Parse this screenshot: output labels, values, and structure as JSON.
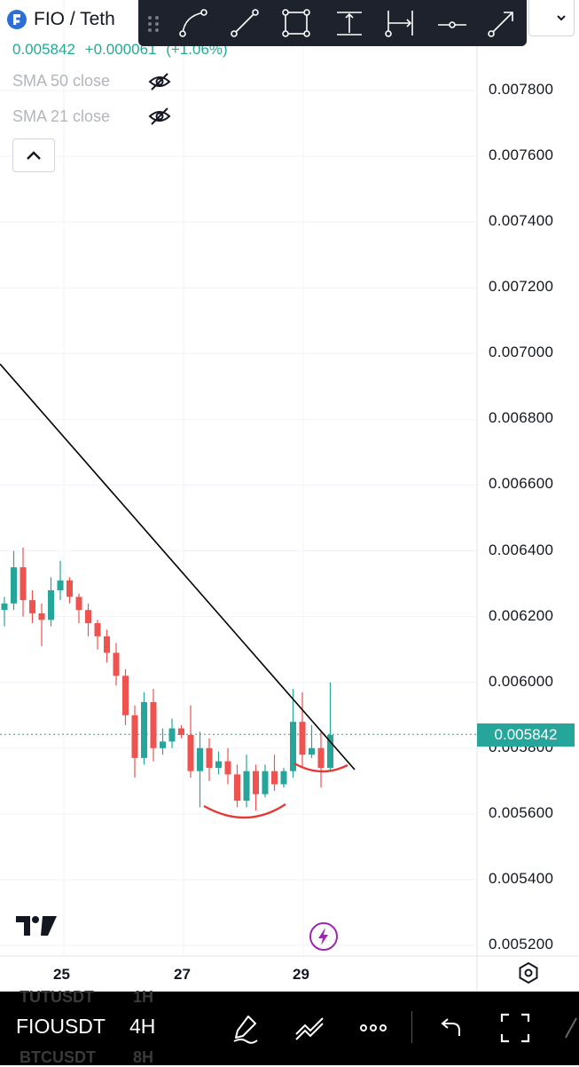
{
  "header": {
    "symbol_title": "FIO / Teth",
    "last_price": "0.005842",
    "change": "+0.000061",
    "change_pct": "(+1.06%)"
  },
  "indicators": [
    {
      "label": "SMA 50 close",
      "icon": "eye-crossed-icon"
    },
    {
      "label": "SMA 21 close",
      "icon": "eye-crossed-icon"
    }
  ],
  "drawing_toolbar": {
    "icons": [
      "drag-handle-icon",
      "curve-tool-icon",
      "trend-line-icon",
      "rectangle-tool-icon",
      "vertical-measure-icon",
      "horizontal-measure-icon",
      "horizontal-ray-icon",
      "arrow-tool-icon"
    ]
  },
  "current_price_tag": "0.005842",
  "chart_data": {
    "type": "candlestick",
    "x_tick_labels": [
      "25",
      "27",
      "29"
    ],
    "y_tick_labels": [
      "0.007800",
      "0.007600",
      "0.007400",
      "0.007200",
      "0.007000",
      "0.006800",
      "0.006600",
      "0.006400",
      "0.006200",
      "0.006000",
      "0.005800",
      "0.005600",
      "0.005400",
      "0.005200"
    ],
    "ylim": [
      0.00515,
      0.0079
    ],
    "grid": true,
    "colors": {
      "up": "#26a69a",
      "down": "#ef5350",
      "trendline": "#000000",
      "arc": "#e53935",
      "price_line": "#26a69a"
    },
    "candles": [
      {
        "o": 0.00622,
        "h": 0.00626,
        "l": 0.00617,
        "c": 0.00624
      },
      {
        "o": 0.00624,
        "h": 0.0064,
        "l": 0.00622,
        "c": 0.00635
      },
      {
        "o": 0.00635,
        "h": 0.00641,
        "l": 0.0062,
        "c": 0.00625
      },
      {
        "o": 0.00625,
        "h": 0.00628,
        "l": 0.00618,
        "c": 0.00621
      },
      {
        "o": 0.00621,
        "h": 0.00624,
        "l": 0.00611,
        "c": 0.00619
      },
      {
        "o": 0.00619,
        "h": 0.00632,
        "l": 0.00617,
        "c": 0.00628
      },
      {
        "o": 0.00628,
        "h": 0.00637,
        "l": 0.00625,
        "c": 0.00631
      },
      {
        "o": 0.00631,
        "h": 0.00632,
        "l": 0.00624,
        "c": 0.00626
      },
      {
        "o": 0.00626,
        "h": 0.00627,
        "l": 0.00618,
        "c": 0.00622
      },
      {
        "o": 0.00622,
        "h": 0.00624,
        "l": 0.00614,
        "c": 0.00618
      },
      {
        "o": 0.00618,
        "h": 0.00619,
        "l": 0.0061,
        "c": 0.00614
      },
      {
        "o": 0.00614,
        "h": 0.00616,
        "l": 0.00606,
        "c": 0.00609
      },
      {
        "o": 0.00609,
        "h": 0.00612,
        "l": 0.00599,
        "c": 0.00602
      },
      {
        "o": 0.00602,
        "h": 0.00604,
        "l": 0.00587,
        "c": 0.0059
      },
      {
        "o": 0.0059,
        "h": 0.00593,
        "l": 0.00571,
        "c": 0.00577
      },
      {
        "o": 0.00577,
        "h": 0.00597,
        "l": 0.00575,
        "c": 0.00594
      },
      {
        "o": 0.00594,
        "h": 0.00598,
        "l": 0.00576,
        "c": 0.0058
      },
      {
        "o": 0.0058,
        "h": 0.00586,
        "l": 0.00578,
        "c": 0.00582
      },
      {
        "o": 0.00582,
        "h": 0.00589,
        "l": 0.0058,
        "c": 0.00586
      },
      {
        "o": 0.00586,
        "h": 0.00587,
        "l": 0.00583,
        "c": 0.00584
      },
      {
        "o": 0.00584,
        "h": 0.00593,
        "l": 0.00571,
        "c": 0.00573
      },
      {
        "o": 0.00573,
        "h": 0.00585,
        "l": 0.00562,
        "c": 0.0058
      },
      {
        "o": 0.0058,
        "h": 0.00583,
        "l": 0.0057,
        "c": 0.00574
      },
      {
        "o": 0.00574,
        "h": 0.00579,
        "l": 0.00572,
        "c": 0.00576
      },
      {
        "o": 0.00576,
        "h": 0.0058,
        "l": 0.00569,
        "c": 0.00572
      },
      {
        "o": 0.00572,
        "h": 0.00575,
        "l": 0.00562,
        "c": 0.00564
      },
      {
        "o": 0.00564,
        "h": 0.00578,
        "l": 0.00562,
        "c": 0.00573
      },
      {
        "o": 0.00573,
        "h": 0.00575,
        "l": 0.00561,
        "c": 0.00566
      },
      {
        "o": 0.00566,
        "h": 0.00575,
        "l": 0.00565,
        "c": 0.00573
      },
      {
        "o": 0.00573,
        "h": 0.00578,
        "l": 0.00567,
        "c": 0.00569
      },
      {
        "o": 0.00569,
        "h": 0.00574,
        "l": 0.00568,
        "c": 0.00573
      },
      {
        "o": 0.00573,
        "h": 0.00598,
        "l": 0.00571,
        "c": 0.00588
      },
      {
        "o": 0.00588,
        "h": 0.00597,
        "l": 0.00574,
        "c": 0.00578
      },
      {
        "o": 0.00578,
        "h": 0.00587,
        "l": 0.00577,
        "c": 0.0058
      },
      {
        "o": 0.0058,
        "h": 0.00585,
        "l": 0.00568,
        "c": 0.00574
      },
      {
        "o": 0.00574,
        "h": 0.006,
        "l": 0.00573,
        "c": 0.00584
      }
    ]
  },
  "bottom_bar": {
    "symbol": "FIOUSDT",
    "interval": "4H",
    "ghost_symbol_1": "TUTUSDT",
    "ghost_interval_1": "1H",
    "ghost_symbol_2": "BTCUSDT",
    "ghost_interval_2": "8H",
    "icons": [
      "brush-icon",
      "line-tools-icon",
      "more-dots-icon",
      "undo-icon",
      "fullscreen-icon"
    ]
  }
}
